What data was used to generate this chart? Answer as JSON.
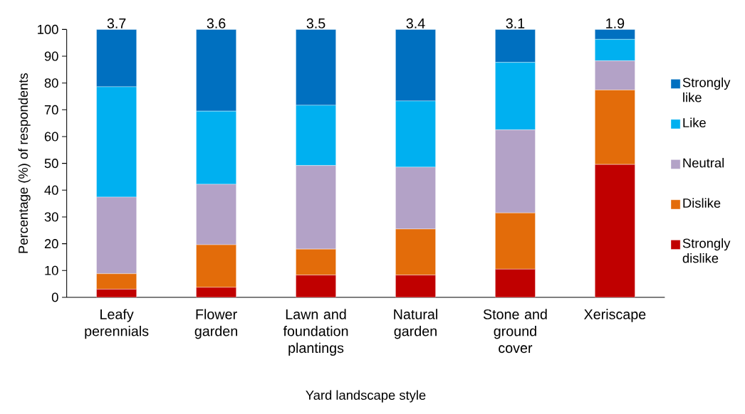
{
  "chart_data": {
    "type": "bar",
    "stacked": true,
    "xlabel": "Yard landscape style",
    "ylabel": "Percentage (%) of respondents",
    "categories": [
      "Leafy perennials",
      "Flower garden",
      "Lawn and foundation plantings",
      "Natural garden",
      "Stone and ground cover",
      "Xeriscape"
    ],
    "series": [
      {
        "name": "Strongly dislike",
        "color": "#c00000",
        "values": [
          3.0,
          3.7,
          8.3,
          8.3,
          10.5,
          49.6
        ]
      },
      {
        "name": "Dislike",
        "color": "#e36c0a",
        "values": [
          5.8,
          15.9,
          9.7,
          17.2,
          21.0,
          27.8
        ]
      },
      {
        "name": "Neutral",
        "color": "#b3a2c7",
        "values": [
          28.6,
          22.6,
          31.2,
          23.1,
          31.0,
          10.9
        ]
      },
      {
        "name": "Like",
        "color": "#00b0f0",
        "values": [
          41.2,
          27.3,
          22.5,
          24.7,
          25.2,
          8.0
        ]
      },
      {
        "name": "Strongly like",
        "color": "#0070c0",
        "values": [
          21.4,
          30.5,
          28.3,
          26.7,
          12.3,
          3.7
        ]
      }
    ],
    "annotations": [
      "3.7",
      "3.6",
      "3.5",
      "3.4",
      "3.1",
      "1.9"
    ],
    "ylim": [
      0,
      100
    ],
    "yticks": [
      0,
      10,
      20,
      30,
      40,
      50,
      60,
      70,
      80,
      90,
      100
    ],
    "legend": "right",
    "grid": false
  }
}
